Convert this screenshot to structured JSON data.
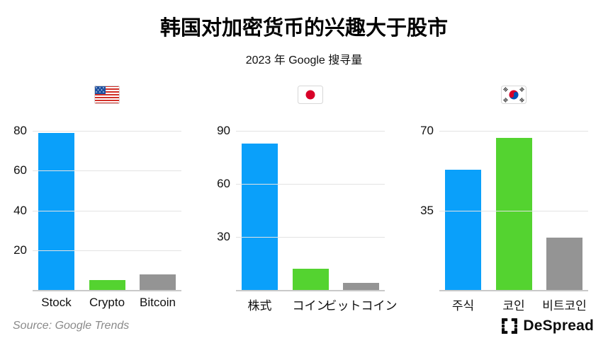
{
  "header": {
    "title": "韩国对加密货币的兴趣大于股市",
    "subtitle": "2023 年 Google 搜寻量"
  },
  "chart_data": [
    {
      "type": "bar",
      "country": "United States",
      "flag_icon": "us-flag-icon",
      "categories": [
        "Stock",
        "Crypto",
        "Bitcoin"
      ],
      "values": [
        79,
        5,
        8
      ],
      "y_ticks": [
        20,
        40,
        60,
        80
      ],
      "ylim": [
        0,
        80
      ],
      "bar_colors": [
        "#0AA0FA",
        "#54D330",
        "#949494"
      ],
      "grid": true,
      "legend": false
    },
    {
      "type": "bar",
      "country": "Japan",
      "flag_icon": "japan-flag-icon",
      "categories": [
        "株式",
        "コイン",
        "ビットコイン"
      ],
      "values": [
        83,
        12,
        4
      ],
      "y_ticks": [
        30,
        60,
        90
      ],
      "ylim": [
        0,
        90
      ],
      "bar_colors": [
        "#0AA0FA",
        "#54D330",
        "#949494"
      ],
      "grid": true,
      "legend": false
    },
    {
      "type": "bar",
      "country": "South Korea",
      "flag_icon": "korea-flag-icon",
      "categories": [
        "주식",
        "코인",
        "비트코인"
      ],
      "values": [
        53,
        67,
        23
      ],
      "y_ticks": [
        35,
        70
      ],
      "ylim": [
        0,
        70
      ],
      "bar_colors": [
        "#0AA0FA",
        "#54D330",
        "#949494"
      ],
      "grid": true,
      "legend": false
    }
  ],
  "footer": {
    "source": "Source: Google Trends",
    "brand": "DeSpread",
    "brand_icon": "despread-brackets-icon"
  },
  "colors": {
    "bar_blue": "#0AA0FA",
    "bar_green": "#54D330",
    "bar_gray": "#949494",
    "gridline": "#E3E3E3",
    "baseline": "#C9C9C9",
    "text": "#111111",
    "source_text": "#8A8A8A"
  }
}
